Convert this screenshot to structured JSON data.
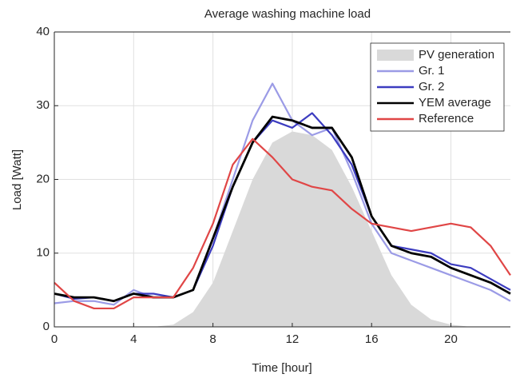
{
  "chart_data": {
    "type": "line",
    "title": "Average washing machine load",
    "x_label": "Time [hour]",
    "y_label": "Load [Watt]",
    "x": [
      0,
      1,
      2,
      3,
      4,
      5,
      6,
      7,
      8,
      9,
      10,
      11,
      12,
      13,
      14,
      15,
      16,
      17,
      18,
      19,
      20,
      21,
      22,
      23
    ],
    "series": [
      {
        "name": "PV generation",
        "color": "#d9d9d9",
        "style": "area",
        "values": [
          0,
          0,
          0,
          0,
          0,
          0,
          0.3,
          2,
          6,
          13,
          20,
          25,
          26.5,
          26,
          24,
          19,
          13,
          7,
          3,
          1,
          0.3,
          0,
          0,
          0
        ]
      },
      {
        "name": "Gr. 1",
        "color": "#9b9be6",
        "style": "line",
        "values": [
          3.2,
          3.5,
          3.5,
          3,
          5,
          4,
          4,
          5,
          12,
          20,
          28,
          33,
          28,
          26,
          27,
          21,
          14,
          10,
          9,
          8,
          7,
          6,
          5,
          3.5
        ]
      },
      {
        "name": "Gr. 2",
        "color": "#3c3cc0",
        "style": "line",
        "values": [
          4.5,
          3.8,
          4,
          3.5,
          4.5,
          4.5,
          4,
          5,
          11,
          19,
          25,
          28,
          27,
          29,
          26,
          22,
          15,
          11,
          10.5,
          10,
          8.5,
          8,
          6.5,
          5
        ]
      },
      {
        "name": "YEM average",
        "color": "#000000",
        "style": "line",
        "values": [
          4.5,
          4,
          4,
          3.5,
          4.5,
          4,
          4,
          5,
          12,
          19,
          25,
          28.5,
          28,
          27,
          27,
          23,
          15,
          11,
          10,
          9.5,
          8,
          7,
          6,
          4.5
        ]
      },
      {
        "name": "Reference",
        "color": "#e04646",
        "style": "line",
        "values": [
          6,
          3.5,
          2.5,
          2.5,
          4,
          4,
          4,
          8,
          14,
          22,
          25.5,
          23,
          20,
          19,
          18.5,
          16,
          14,
          13.5,
          13,
          13.5,
          14,
          13.5,
          11,
          7
        ]
      }
    ],
    "xlim": [
      0,
      23
    ],
    "xticks": [
      0,
      4,
      8,
      12,
      16,
      20
    ],
    "ylim": [
      0,
      40
    ],
    "yticks": [
      0,
      10,
      20,
      30,
      40
    ],
    "grid": true,
    "legend": "top-right"
  }
}
